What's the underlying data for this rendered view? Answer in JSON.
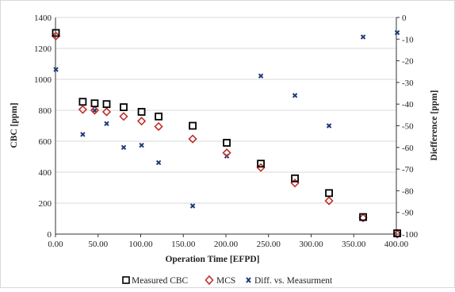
{
  "chart_data": {
    "type": "scatter",
    "xlabel": "Operation Time [EFPD]",
    "ylabel_left": "CBC [ppm]",
    "ylabel_right": "Diefference [ppm]",
    "xlim": [
      0,
      400
    ],
    "ylim_left": [
      0,
      1400
    ],
    "ylim_right": [
      -100,
      0
    ],
    "x_ticks": [
      "0.00",
      "50.00",
      "100.00",
      "150.00",
      "200.00",
      "250.00",
      "300.00",
      "350.00",
      "400.00"
    ],
    "y_left_ticks": [
      "0",
      "200",
      "400",
      "600",
      "800",
      "1000",
      "1200",
      "1400"
    ],
    "y_right_ticks": [
      "0",
      "-10",
      "-20",
      "-30",
      "-40",
      "-50",
      "-60",
      "-70",
      "-80",
      "-90",
      "-100"
    ],
    "grid": "horizontal",
    "legend_position": "bottom",
    "series": [
      {
        "name": "Measured CBC",
        "axis": "left",
        "marker": "square",
        "color": "#000000",
        "points": [
          {
            "x": 0.5,
            "y": 1300
          },
          {
            "x": 32,
            "y": 855
          },
          {
            "x": 46,
            "y": 845
          },
          {
            "x": 60,
            "y": 840
          },
          {
            "x": 80,
            "y": 820
          },
          {
            "x": 101,
            "y": 790
          },
          {
            "x": 121,
            "y": 760
          },
          {
            "x": 161,
            "y": 700
          },
          {
            "x": 201,
            "y": 590
          },
          {
            "x": 241,
            "y": 455
          },
          {
            "x": 281,
            "y": 360
          },
          {
            "x": 321,
            "y": 265
          },
          {
            "x": 361,
            "y": 110
          },
          {
            "x": 401,
            "y": 5
          }
        ]
      },
      {
        "name": "MCS",
        "axis": "left",
        "marker": "diamond",
        "color": "#c0302a",
        "points": [
          {
            "x": 0.5,
            "y": 1280
          },
          {
            "x": 32,
            "y": 805
          },
          {
            "x": 46,
            "y": 800
          },
          {
            "x": 60,
            "y": 790
          },
          {
            "x": 80,
            "y": 760
          },
          {
            "x": 101,
            "y": 730
          },
          {
            "x": 121,
            "y": 695
          },
          {
            "x": 161,
            "y": 615
          },
          {
            "x": 201,
            "y": 525
          },
          {
            "x": 241,
            "y": 430
          },
          {
            "x": 281,
            "y": 330
          },
          {
            "x": 321,
            "y": 215
          },
          {
            "x": 361,
            "y": 105
          },
          {
            "x": 401,
            "y": 0
          }
        ]
      },
      {
        "name": "Diff. vs. Measurment",
        "axis": "right",
        "marker": "x",
        "color": "#1f3a78",
        "points": [
          {
            "x": 0.5,
            "y": -24
          },
          {
            "x": 32,
            "y": -54
          },
          {
            "x": 46,
            "y": -43
          },
          {
            "x": 60,
            "y": -49
          },
          {
            "x": 80,
            "y": -60
          },
          {
            "x": 101,
            "y": -59
          },
          {
            "x": 121,
            "y": -67
          },
          {
            "x": 161,
            "y": -87
          },
          {
            "x": 201,
            "y": -64
          },
          {
            "x": 241,
            "y": -27
          },
          {
            "x": 281,
            "y": -36
          },
          {
            "x": 321,
            "y": -50
          },
          {
            "x": 361,
            "y": -9
          },
          {
            "x": 401,
            "y": -7
          }
        ]
      }
    ]
  }
}
